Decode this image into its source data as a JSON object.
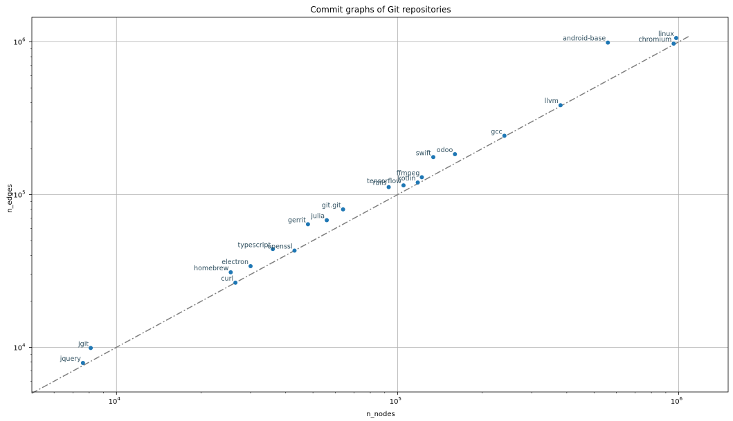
{
  "chart_data": {
    "type": "scatter",
    "title": "Commit graphs of Git repositories",
    "xlabel": "n_nodes",
    "ylabel": "n_edges",
    "xscale": "log",
    "yscale": "log",
    "xlim": [
      5000,
      1500000
    ],
    "ylim": [
      5100,
      1450000
    ],
    "grid": true,
    "x_ticks": [
      {
        "value": 10000,
        "base": "10",
        "exp": "4"
      },
      {
        "value": 100000,
        "base": "10",
        "exp": "5"
      },
      {
        "value": 1000000,
        "base": "10",
        "exp": "6"
      }
    ],
    "y_ticks": [
      {
        "value": 10000,
        "base": "10",
        "exp": "4"
      },
      {
        "value": 100000,
        "base": "10",
        "exp": "5"
      },
      {
        "value": 1000000,
        "base": "10",
        "exp": "6"
      }
    ],
    "reference_line": {
      "style": "dash-dot",
      "color": "#7f7f7f",
      "x": [
        5000,
        1100000
      ],
      "y": [
        5000,
        1100000
      ]
    },
    "point_color": "#1f77b4",
    "label_color": "#2f4f5f",
    "points": [
      {
        "label": "linux",
        "x": 980000,
        "y": 1060000
      },
      {
        "label": "android-base",
        "x": 560000,
        "y": 990000
      },
      {
        "label": "chromium",
        "x": 960000,
        "y": 975000
      },
      {
        "label": "llvm",
        "x": 380000,
        "y": 385000
      },
      {
        "label": "gcc",
        "x": 240000,
        "y": 243000
      },
      {
        "label": "odoo",
        "x": 160000,
        "y": 184000
      },
      {
        "label": "swift",
        "x": 134000,
        "y": 176000
      },
      {
        "label": "ffmpeg",
        "x": 122000,
        "y": 130000
      },
      {
        "label": "kotlin",
        "x": 118000,
        "y": 120000
      },
      {
        "label": "tensorflow",
        "x": 105000,
        "y": 115000
      },
      {
        "label": "rails",
        "x": 93000,
        "y": 112000
      },
      {
        "label": "git.git",
        "x": 64000,
        "y": 80000
      },
      {
        "label": "julia",
        "x": 56000,
        "y": 68000
      },
      {
        "label": "gerrit",
        "x": 48000,
        "y": 64000
      },
      {
        "label": "openssl",
        "x": 43000,
        "y": 43000
      },
      {
        "label": "typescript",
        "x": 36000,
        "y": 44000
      },
      {
        "label": "electron",
        "x": 30000,
        "y": 34000
      },
      {
        "label": "homebrew",
        "x": 25500,
        "y": 31000
      },
      {
        "label": "curl",
        "x": 26500,
        "y": 26500
      },
      {
        "label": "jgit",
        "x": 8100,
        "y": 9900
      },
      {
        "label": "jquery",
        "x": 7600,
        "y": 7900
      }
    ]
  }
}
